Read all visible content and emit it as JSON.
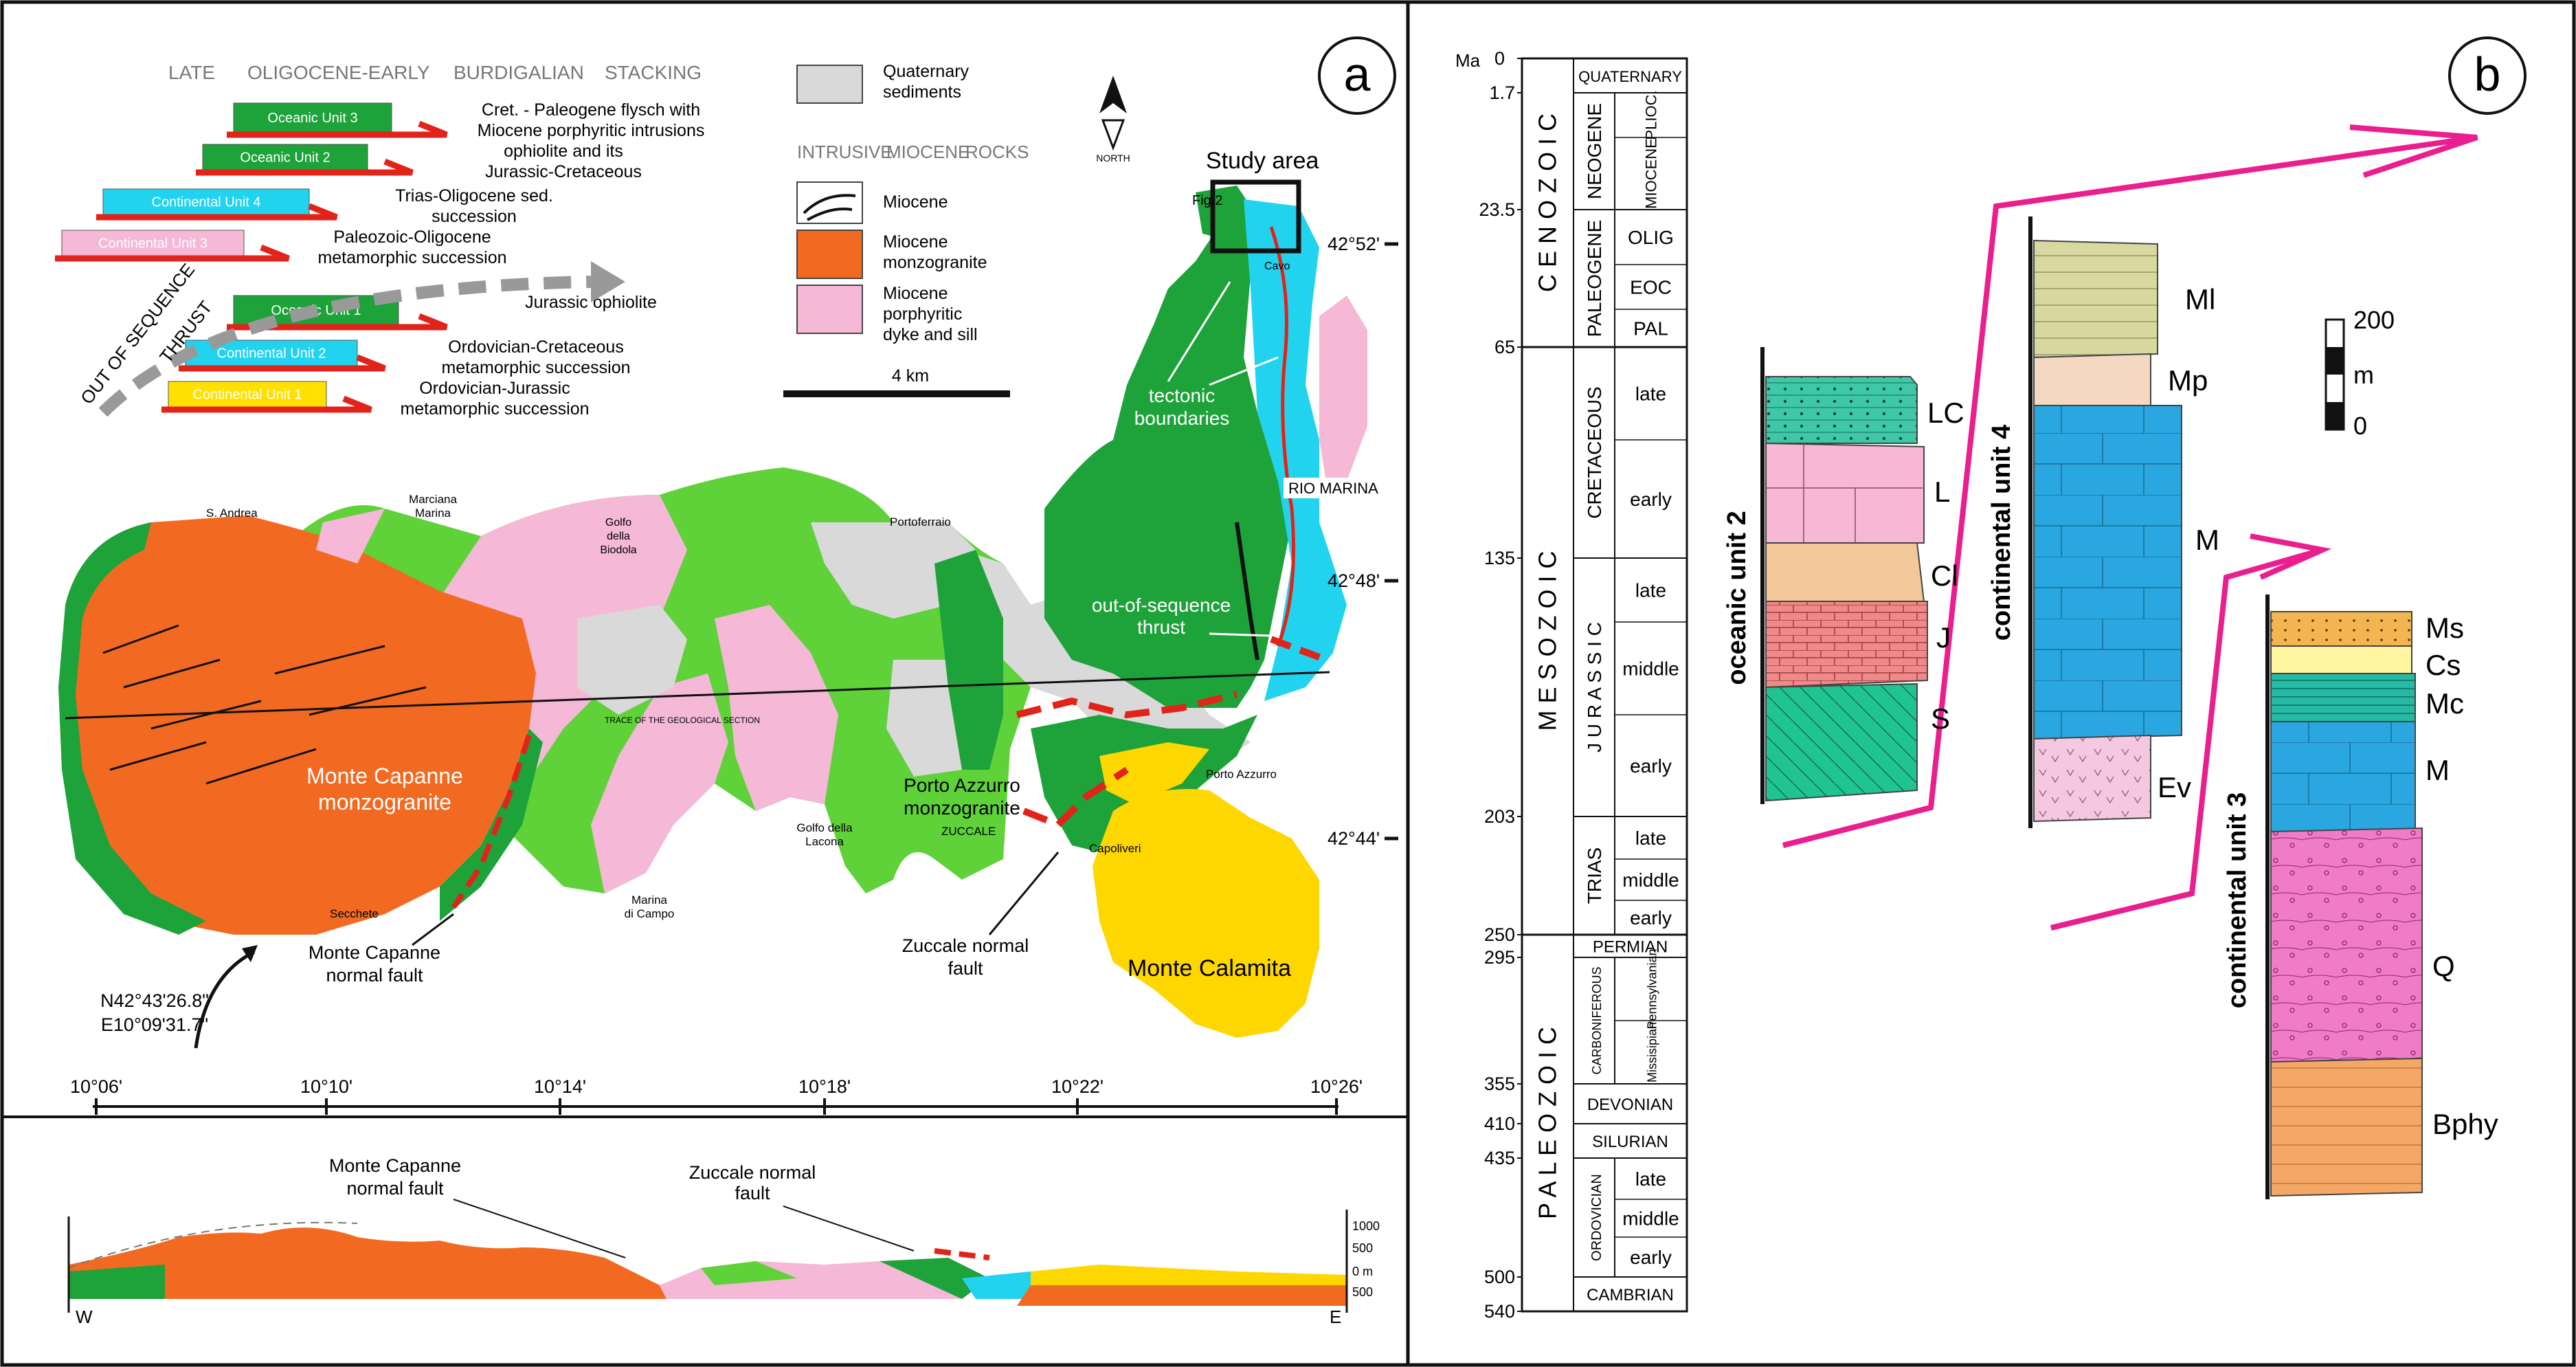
{
  "panel_a": {
    "label": "a",
    "stacking_header": [
      "LATE",
      "OLIGOCENE-EARLY",
      "BURDIGALIAN",
      "STACKING"
    ],
    "units": [
      {
        "name": "Oceanic Unit 3",
        "desc": [
          "Cret. - Paleogene flysch with",
          "Miocene porphyritic intrusions"
        ],
        "color": "#1ea23a"
      },
      {
        "name": "Oceanic Unit 2",
        "desc": [
          "ophiolite and its",
          "Jurassic-Cretaceous"
        ],
        "color": "#1ea23a"
      },
      {
        "name": "Continental Unit 4",
        "desc": [
          "Trias-Oligocene sed.",
          "succession"
        ],
        "color": "#22d3f0"
      },
      {
        "name": "Continental Unit 3",
        "desc": [
          "Paleozoic-Oligocene",
          "metamorphic succession"
        ],
        "color": "#f5b8d6"
      },
      {
        "name": "Oceanic Unit 1",
        "desc": [
          "Jurassic ophiolite"
        ],
        "color": "#1ea23a"
      },
      {
        "name": "Continental Unit 2",
        "desc": [
          "Ordovician-Cretaceous",
          "metamorphic succession"
        ],
        "color": "#22d3f0"
      },
      {
        "name": "Continental Unit 1",
        "desc": [
          "Ordovician-Jurassic",
          "metamorphic succession"
        ],
        "color": "#ffe100"
      }
    ],
    "oos_label": [
      "OUT OF SEQUENCE",
      "THRUST"
    ],
    "legend": {
      "quaternary": [
        "Quaternary",
        "sediments"
      ],
      "intrusive_header": [
        "INTRUSIVE",
        "MIOCENE",
        "ROCKS"
      ],
      "miocene": "Miocene",
      "monzogranite": [
        "Miocene",
        "monzogranite"
      ],
      "porphyritic": [
        "Miocene",
        "porphyritic",
        "dyke and sill"
      ],
      "scale": "4 km",
      "north": "NORTH"
    },
    "colors": {
      "green": "#1ea23a",
      "lightgreen": "#5fd23a",
      "orange": "#f26a21",
      "pink": "#f5b8d6",
      "cyan": "#22d3f0",
      "yellow": "#ffd700",
      "grey": "#d9d9d9",
      "red": "#e2231a"
    },
    "study_area": "Study area",
    "fig2": "Fig.2",
    "places": {
      "cavo": "Cavo",
      "rio_marina": "RIO MARINA",
      "s_andrea": "S. Andrea",
      "marciana": [
        "Marciana",
        "Marina"
      ],
      "golfo_biodola": [
        "Golfo",
        "della",
        "Biodola"
      ],
      "portoferraio": "Portoferraio",
      "porto_azzurro": "Porto Azzurro",
      "golfo_lacona": [
        "Golfo della",
        "Lacona"
      ],
      "zuccale": "ZUCCALE",
      "capoliveri": "Capoliveri",
      "marina_campo": [
        "Marina",
        "di Campo"
      ],
      "seccheto": "Secchete"
    },
    "labels": {
      "tectonic": [
        "tectonic",
        "boundaries"
      ],
      "oos_thrust": [
        "out-of-sequence",
        "thrust"
      ],
      "trace": "TRACE OF THE GEOLOGICAL SECTION",
      "mc_monzo": [
        "Monte Capanne",
        "monzogranite"
      ],
      "pa_monzo": [
        "Porto Azzurro",
        "monzogranite"
      ],
      "mc_fault": [
        "Monte Capanne",
        "normal fault"
      ],
      "zuccale_fault": [
        "Zuccale normal",
        "fault"
      ],
      "monte_calamita": "Monte Calamita",
      "coords": [
        "N42°43'26.8\"",
        "E10°09'31.7\""
      ]
    },
    "lat_ticks": [
      "42°52'",
      "42°48'",
      "42°44'"
    ],
    "lon_ticks": [
      "10°06'",
      "10°10'",
      "10°14'",
      "10°18'",
      "10°22'",
      "10°26'"
    ],
    "section": {
      "left": "W",
      "right": "E",
      "mc_fault": [
        "Monte Capanne",
        "normal fault"
      ],
      "zuccale_fault": [
        "Zuccale normal",
        "fault"
      ],
      "scale_ticks": [
        "1000",
        "500",
        "0 m",
        "500"
      ]
    }
  },
  "panel_b": {
    "label": "b",
    "ma_header": "Ma",
    "ages": [
      "0",
      "1.7",
      "23.5",
      "65",
      "135",
      "203",
      "250",
      "295",
      "355",
      "410",
      "435",
      "500",
      "540"
    ],
    "eras": [
      "C E N O Z O I C",
      "M E S O Z O I C",
      "P A L E O Z O I C"
    ],
    "periods": [
      "QUATERNARY",
      "NEOGENE",
      "PALEOGENE",
      "CRETACEOUS",
      "J U R A S S I C",
      "TRIAS",
      "PERMIAN",
      "CARBONIFEROUS",
      "DEVONIAN",
      "SILURIAN",
      "ORDOVICIAN",
      "CAMBRIAN"
    ],
    "epochs": [
      "PLIOC.",
      "MIOCENE",
      "OLIG",
      "EOC",
      "PAL",
      "late",
      "early",
      "late",
      "middle",
      "early",
      "late",
      "middle",
      "early",
      "Pennsylvanian",
      "Missisipian",
      "late",
      "middle",
      "early"
    ],
    "columns": [
      {
        "name": "oceanic unit 2",
        "layers": [
          "LC",
          "L",
          "Cl",
          "J",
          "S"
        ]
      },
      {
        "name": "continental unit 4",
        "layers": [
          "Ml",
          "Mp",
          "M",
          "Ev"
        ]
      },
      {
        "name": "continental unit 3",
        "layers": [
          "Ms",
          "Cs",
          "Mc",
          "M",
          "Q",
          "Bphy"
        ]
      }
    ],
    "scale": [
      "200",
      "m",
      "0"
    ]
  }
}
